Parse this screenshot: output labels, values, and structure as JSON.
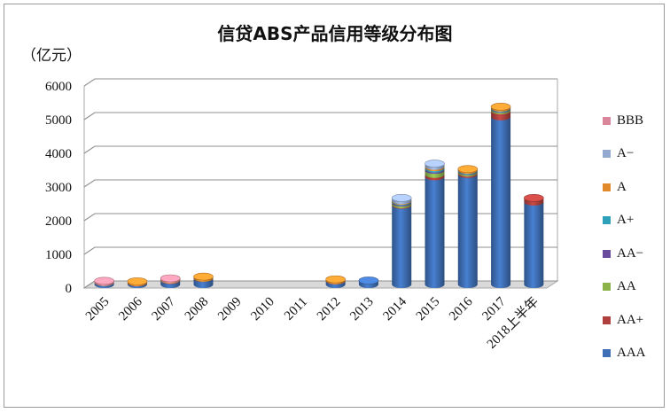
{
  "chart_data": {
    "type": "bar",
    "stacked": true,
    "style": "3d-cylinder",
    "title": "信贷ABS产品信用等级分布图",
    "unit": "（亿元）",
    "xlabel": "",
    "ylabel": "",
    "ylim": [
      0,
      6000
    ],
    "yticks": [
      "0",
      "1000",
      "2000",
      "3000",
      "4000",
      "5000",
      "6000"
    ],
    "grid": true,
    "legend_position": "right",
    "categories": [
      "2005",
      "2006",
      "2007",
      "2008",
      "2009",
      "2010",
      "2011",
      "2012",
      "2013",
      "2014",
      "2015",
      "2016",
      "2017",
      "2018上半年"
    ],
    "series": [
      {
        "name": "AAA",
        "color": "#3f6fb6",
        "values": [
          60,
          50,
          120,
          180,
          0,
          0,
          0,
          110,
          120,
          2350,
          3200,
          3270,
          4980,
          2450
        ]
      },
      {
        "name": "AA+",
        "color": "#b0403d",
        "values": [
          0,
          5,
          10,
          10,
          0,
          0,
          0,
          5,
          0,
          20,
          70,
          40,
          180,
          120
        ]
      },
      {
        "name": "AA",
        "color": "#8bb34a",
        "values": [
          0,
          0,
          5,
          5,
          0,
          0,
          0,
          0,
          0,
          50,
          120,
          40,
          40,
          0
        ]
      },
      {
        "name": "AA−",
        "color": "#6a4c9c",
        "values": [
          0,
          0,
          0,
          0,
          0,
          0,
          0,
          0,
          0,
          30,
          40,
          20,
          20,
          0
        ]
      },
      {
        "name": "A+",
        "color": "#2fa0b9",
        "values": [
          0,
          0,
          0,
          0,
          0,
          0,
          0,
          0,
          0,
          20,
          40,
          20,
          20,
          0
        ]
      },
      {
        "name": "A",
        "color": "#e08a2c",
        "values": [
          10,
          10,
          10,
          10,
          0,
          0,
          0,
          20,
          0,
          20,
          40,
          30,
          40,
          0
        ]
      },
      {
        "name": "A−",
        "color": "#93a9cf",
        "values": [
          0,
          0,
          0,
          0,
          0,
          0,
          0,
          0,
          0,
          80,
          80,
          0,
          0,
          0
        ]
      },
      {
        "name": "BBB",
        "color": "#d9869a",
        "values": [
          10,
          0,
          20,
          0,
          0,
          0,
          0,
          0,
          0,
          0,
          0,
          0,
          0,
          0
        ]
      }
    ]
  }
}
